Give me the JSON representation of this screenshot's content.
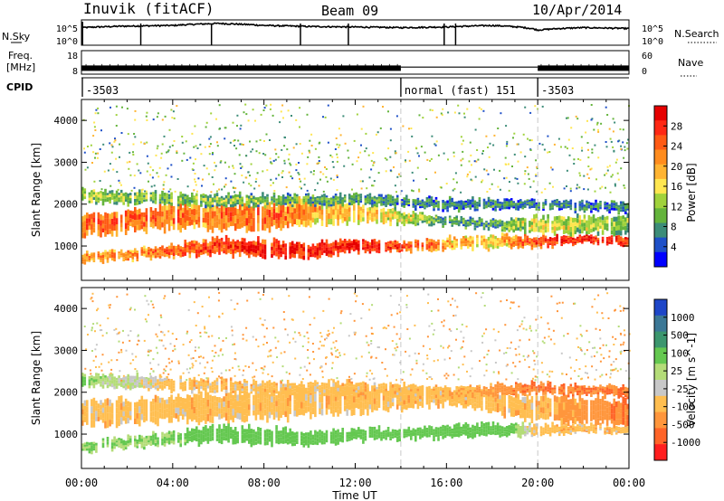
{
  "header": {
    "station": "Inuvik (fitACF)",
    "beam": "Beam 09",
    "date": "10/Apr/2014"
  },
  "strip_labels": {
    "nsky": "N.Sky",
    "nsearch": "N.Search",
    "freq_line1": "Freq.",
    "freq_line2": "[MHz]",
    "nave": "Nave",
    "cpid": "CPID"
  },
  "strip_ticks": {
    "sky_top": "10^5",
    "sky_bottom": "10^0",
    "search_top": "10^5",
    "search_bottom": "10^0",
    "freq_top": "18",
    "freq_bottom": "8",
    "nave_top": "60",
    "nave_bottom": "0"
  },
  "cpid": {
    "segments": [
      {
        "label": "-3503",
        "start_hour": 0
      },
      {
        "label": "normal (fast) 151",
        "start_hour": 14
      },
      {
        "label": "-3503",
        "start_hour": 20
      }
    ]
  },
  "axes": {
    "ylabel": "Slant Range [km]",
    "xlabel": "Time UT",
    "yticks": [
      "1000",
      "2000",
      "3000",
      "4000"
    ],
    "ytick_values": [
      1000,
      2000,
      3000,
      4000
    ],
    "xticks": [
      "00:00",
      "04:00",
      "08:00",
      "12:00",
      "16:00",
      "20:00",
      "00:00"
    ],
    "xtick_hours": [
      0,
      4,
      8,
      12,
      16,
      20,
      24
    ]
  },
  "power_colorbar": {
    "label": "Power [dB]",
    "ticks": [
      "4",
      "8",
      "12",
      "16",
      "20",
      "24",
      "28"
    ],
    "colors": [
      "#0000ff",
      "#1e50c8",
      "#3c8c78",
      "#64b43c",
      "#a0d23c",
      "#ffe650",
      "#ffb432",
      "#ff8c1e",
      "#ff5a14",
      "#ff2814",
      "#e60000"
    ]
  },
  "velocity_colorbar": {
    "label": "Velocity [m s^-1]",
    "ticks": [
      "1000",
      "500",
      "100",
      "25",
      "-25",
      "-100",
      "-500",
      "-1000"
    ],
    "colors": [
      "#1e46c8",
      "#3c7896",
      "#3c966e",
      "#64c850",
      "#b4dc78",
      "#c8c8c8",
      "#ffbe50",
      "#ff963c",
      "#ff6428",
      "#ff1e1e"
    ]
  },
  "chart_data": [
    {
      "type": "line",
      "title": "",
      "x": [
        0,
        2,
        4,
        6,
        8,
        10,
        12,
        14,
        16,
        18,
        20,
        22,
        24
      ],
      "series": [
        {
          "name": "N.Sky",
          "values": [
            3000,
            6000,
            8000,
            20000,
            8000,
            5000,
            4000,
            3000,
            4000,
            8000,
            1000,
            3000,
            2000
          ]
        }
      ],
      "ylim": [
        1,
        100000
      ],
      "yscale": "log"
    },
    {
      "type": "line",
      "title": "",
      "x": [
        0,
        14,
        20,
        24
      ],
      "series": [
        {
          "name": "Freq.",
          "values": [
            11,
            11,
            11,
            11
          ]
        },
        {
          "name": "Nave",
          "values": [
            30,
            19,
            30,
            30
          ]
        }
      ],
      "ylim": [
        8,
        18
      ]
    },
    {
      "type": "heatmap",
      "title": "",
      "quantity": "Power",
      "unit": "dB",
      "xlim": [
        0,
        24
      ],
      "ylim": [
        180,
        4500
      ],
      "clim": [
        0,
        30
      ],
      "bands": [
        {
          "x": [
            0,
            2,
            4,
            6,
            8,
            10,
            12,
            14,
            16,
            18,
            20,
            22,
            24
          ],
          "center_km": [
            700,
            800,
            900,
            1000,
            950,
            900,
            1000,
            1000,
            1050,
            1100,
            1100,
            1150,
            1100
          ],
          "width_km": [
            250,
            250,
            300,
            400,
            400,
            350,
            300,
            250,
            300,
            300,
            250,
            200,
            200
          ],
          "power_db": [
            20,
            22,
            24,
            26,
            28,
            29,
            28,
            26,
            20,
            18,
            26,
            28,
            27
          ]
        },
        {
          "x": [
            0,
            2,
            4,
            6,
            8,
            10,
            12,
            14,
            16,
            18,
            20,
            22,
            24
          ],
          "center_km": [
            1500,
            1600,
            1700,
            1700,
            1700,
            1800,
            1800,
            1700,
            1600,
            1500,
            1500,
            1500,
            1500
          ],
          "width_km": [
            500,
            500,
            600,
            600,
            650,
            600,
            500,
            300,
            200,
            200,
            400,
            400,
            400
          ],
          "power_db": [
            24,
            24,
            22,
            22,
            24,
            20,
            18,
            16,
            10,
            10,
            16,
            14,
            12
          ]
        },
        {
          "x": [
            0,
            4,
            8,
            12,
            16,
            20,
            24
          ],
          "center_km": [
            2200,
            2100,
            2100,
            2100,
            2000,
            2000,
            1900
          ],
          "width_km": [
            300,
            300,
            250,
            250,
            250,
            200,
            250
          ],
          "power_db": [
            14,
            12,
            12,
            10,
            8,
            8,
            8
          ]
        }
      ]
    },
    {
      "type": "heatmap",
      "title": "",
      "quantity": "Velocity",
      "unit": "m s^-1",
      "xlim": [
        0,
        24
      ],
      "ylim": [
        180,
        4500
      ],
      "clim": [
        -1000,
        1000
      ],
      "bands": [
        {
          "x": [
            0,
            2,
            4,
            6,
            8,
            10,
            12,
            14,
            16,
            18,
            20,
            22,
            24
          ],
          "center_km": [
            700,
            800,
            900,
            1000,
            950,
            900,
            1000,
            1000,
            1050,
            1100,
            1100,
            1150,
            1100
          ],
          "width_km": [
            250,
            250,
            300,
            400,
            400,
            350,
            300,
            250,
            300,
            300,
            250,
            200,
            200
          ],
          "velocity_ms": [
            100,
            100,
            100,
            200,
            200,
            200,
            200,
            200,
            200,
            200,
            0,
            0,
            0
          ]
        },
        {
          "x": [
            0,
            4,
            8,
            12,
            16,
            20,
            24
          ],
          "center_km": [
            1500,
            1600,
            1700,
            1800,
            1900,
            1600,
            1500
          ],
          "width_km": [
            600,
            600,
            700,
            600,
            400,
            600,
            600
          ],
          "velocity_ms": [
            0,
            0,
            0,
            0,
            0,
            0,
            -100
          ]
        },
        {
          "x": [
            0,
            4,
            8,
            12,
            16,
            20,
            24
          ],
          "center_km": [
            2300,
            2200,
            2100,
            2100,
            2000,
            2100,
            2000
          ],
          "width_km": [
            300,
            300,
            300,
            300,
            250,
            250,
            250
          ],
          "velocity_ms": [
            100,
            0,
            0,
            0,
            0,
            -100,
            -100
          ]
        }
      ]
    }
  ]
}
